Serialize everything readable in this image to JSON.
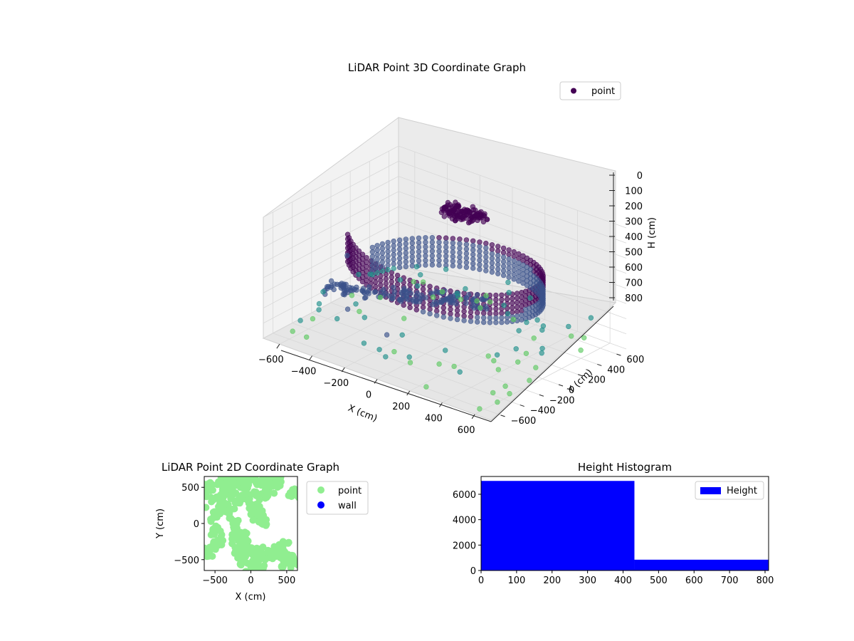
{
  "colors": {
    "viridis_dark": "#440154",
    "viridis_mid": "#3b528b",
    "viridis_teal": "#21918c",
    "viridis_green": "#5ec962",
    "light_green": "#90ee90",
    "wall_blue": "#0000ff",
    "hist_blue": "#0000ff"
  },
  "chart_data": [
    {
      "type": "scatter",
      "title": "LiDAR Point 3D Coordinate Graph",
      "xlabel": "X (cm)",
      "ylabel": "Y (cm)",
      "zlabel": "H (cm)",
      "xticks": [
        "−600",
        "−400",
        "−200",
        "0",
        "200",
        "400",
        "600"
      ],
      "yticks": [
        "−600",
        "−400",
        "−200",
        "0",
        "200",
        "400",
        "600"
      ],
      "zticks": [
        "0",
        "100",
        "200",
        "300",
        "400",
        "500",
        "600",
        "700",
        "800"
      ],
      "xlim": [
        -700,
        700
      ],
      "ylim": [
        -700,
        700
      ],
      "zlim": [
        800,
        0
      ],
      "zaxis_inverted": true,
      "colormap": "viridis",
      "legend": {
        "label": "point",
        "placement": "top-right"
      },
      "series": [
        {
          "name": "point",
          "structures": {
            "ring_height_range": [
              120,
              300
            ],
            "ring_radius": 520,
            "ring_arc_degrees": [
              -140,
              170
            ],
            "dense_cluster_center": [
              -150,
              450,
              150
            ],
            "inner_arm_height": 400,
            "sparse_floor_height_range": [
              600,
              800
            ]
          },
          "sample_points": [
            [
              -600,
              0,
              450
            ],
            [
              -500,
              -300,
              500
            ],
            [
              -300,
              -500,
              520
            ],
            [
              0,
              -600,
              540
            ],
            [
              300,
              -500,
              560
            ],
            [
              500,
              -300,
              580
            ],
            [
              600,
              0,
              600
            ],
            [
              450,
              250,
              620
            ],
            [
              200,
              0,
              400
            ],
            [
              100,
              -200,
              420
            ],
            [
              -100,
              -300,
              450
            ],
            [
              650,
              -550,
              750
            ],
            [
              600,
              -650,
              780
            ],
            [
              -200,
              550,
              700
            ],
            [
              500,
              600,
              770
            ]
          ]
        }
      ]
    },
    {
      "type": "scatter",
      "title": "LiDAR Point 2D Coordinate Graph",
      "xlabel": "X (cm)",
      "ylabel": "Y (cm)",
      "xticks": [
        "−500",
        "0",
        "500"
      ],
      "yticks": [
        "−500",
        "0",
        "500"
      ],
      "xlim": [
        -650,
        650
      ],
      "ylim": [
        -650,
        650
      ],
      "legend": {
        "placement": "outside-right",
        "entries": [
          "point",
          "wall"
        ]
      },
      "series": [
        {
          "name": "point",
          "color": "#90ee90",
          "points": [
            [
              -600,
              500
            ],
            [
              -550,
              300
            ],
            [
              -500,
              100
            ],
            [
              -480,
              -100
            ],
            [
              -450,
              -300
            ],
            [
              -600,
              -400
            ],
            [
              -400,
              600
            ],
            [
              -300,
              550
            ],
            [
              -200,
              600
            ],
            [
              -100,
              550
            ],
            [
              0,
              600
            ],
            [
              100,
              580
            ],
            [
              200,
              600
            ],
            [
              300,
              550
            ],
            [
              400,
              600
            ],
            [
              -350,
              400
            ],
            [
              -300,
              200
            ],
            [
              -250,
              0
            ],
            [
              -200,
              -200
            ],
            [
              -150,
              -400
            ],
            [
              -100,
              -500
            ],
            [
              0,
              -600
            ],
            [
              100,
              -550
            ],
            [
              200,
              -500
            ],
            [
              300,
              -450
            ],
            [
              400,
              -400
            ],
            [
              500,
              -550
            ],
            [
              550,
              -500
            ],
            [
              600,
              -500
            ],
            [
              -50,
              -300
            ],
            [
              -100,
              -200
            ],
            [
              50,
              200
            ],
            [
              100,
              100
            ],
            [
              150,
              0
            ],
            [
              0,
              400
            ],
            [
              -150,
              350
            ],
            [
              200,
              350
            ],
            [
              250,
              450
            ],
            [
              -250,
              450
            ],
            [
              -400,
              250
            ],
            [
              350,
              -100
            ],
            [
              450,
              -250
            ],
            [
              600,
              400
            ],
            [
              650,
              300
            ],
            [
              -50,
              -350
            ],
            [
              100,
              -400
            ],
            [
              150,
              -650
            ],
            [
              -600,
              500
            ]
          ]
        },
        {
          "name": "wall",
          "color": "#0000ff",
          "points": []
        }
      ]
    },
    {
      "type": "bar",
      "title": "Height Histogram",
      "xlabel": "",
      "ylabel": "",
      "legend": {
        "label": "Height",
        "placement": "top-right"
      },
      "xticks": [
        "0",
        "100",
        "200",
        "300",
        "400",
        "500",
        "600",
        "700",
        "800"
      ],
      "yticks": [
        "0",
        "2000",
        "4000",
        "6000"
      ],
      "xlim": [
        0,
        810
      ],
      "ylim": [
        0,
        7400
      ],
      "bins": [
        {
          "start": 0,
          "end": 432,
          "count": 7050
        },
        {
          "start": 432,
          "end": 810,
          "count": 850
        }
      ]
    }
  ]
}
